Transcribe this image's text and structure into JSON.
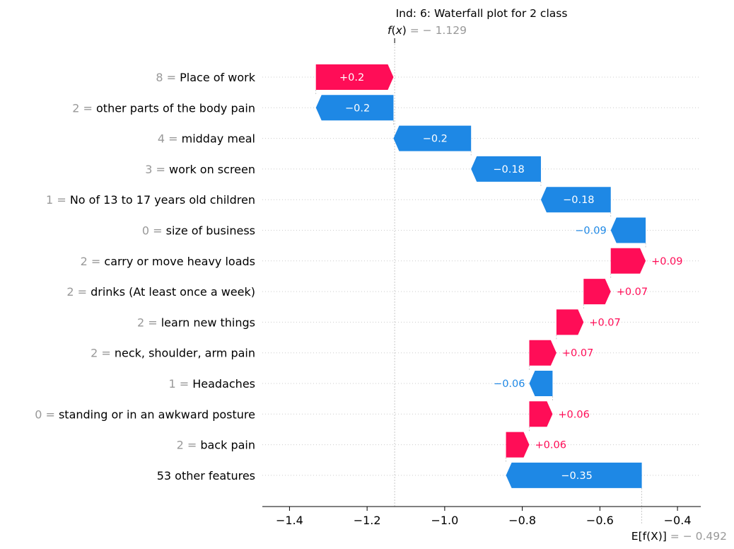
{
  "chart_data": {
    "type": "waterfall",
    "title": "Ind: 6: Waterfall plot for 2 class",
    "fx_label": "f(x)",
    "fx_value_text": "− 1.129",
    "fx_value": -1.129,
    "base_label": "E[f(X)]",
    "base_value_text": "− 0.492",
    "base_value": -0.492,
    "xlim": [
      -1.47,
      -0.34
    ],
    "xticks": [
      -1.4,
      -1.2,
      -1.0,
      -0.8,
      -0.6,
      -0.4
    ],
    "xtick_labels": [
      "−1.4",
      "−1.2",
      "−1.0",
      "−0.8",
      "−0.6",
      "−0.4"
    ],
    "positive_color": "#ff0d57",
    "negative_color": "#1e88e5",
    "features": [
      {
        "value": "8",
        "name": "Place of work",
        "shap": 0.2,
        "label": "+0.2"
      },
      {
        "value": "2",
        "name": "other parts of the body pain",
        "shap": -0.2,
        "label": "−0.2"
      },
      {
        "value": "4",
        "name": "midday meal",
        "shap": -0.2,
        "label": "−0.2"
      },
      {
        "value": "3",
        "name": "work on screen",
        "shap": -0.18,
        "label": "−0.18"
      },
      {
        "value": "1",
        "name": "No of 13 to 17 years old children",
        "shap": -0.18,
        "label": "−0.18"
      },
      {
        "value": "0",
        "name": "size of business",
        "shap": -0.09,
        "label": "−0.09"
      },
      {
        "value": "2",
        "name": "carry or move heavy loads",
        "shap": 0.09,
        "label": "+0.09"
      },
      {
        "value": "2",
        "name": "drinks (At least once a week)",
        "shap": 0.07,
        "label": "+0.07"
      },
      {
        "value": "2",
        "name": "learn new things",
        "shap": 0.07,
        "label": "+0.07"
      },
      {
        "value": "2",
        "name": "neck, shoulder, arm pain",
        "shap": 0.07,
        "label": "+0.07"
      },
      {
        "value": "1",
        "name": "Headaches",
        "shap": -0.06,
        "label": "−0.06"
      },
      {
        "value": "0",
        "name": "standing or in an awkward posture",
        "shap": 0.06,
        "label": "+0.06"
      },
      {
        "value": "2",
        "name": "back pain",
        "shap": 0.06,
        "label": "+0.06"
      },
      {
        "value": "",
        "name": "53 other features",
        "shap": -0.35,
        "label": "−0.35"
      }
    ]
  }
}
